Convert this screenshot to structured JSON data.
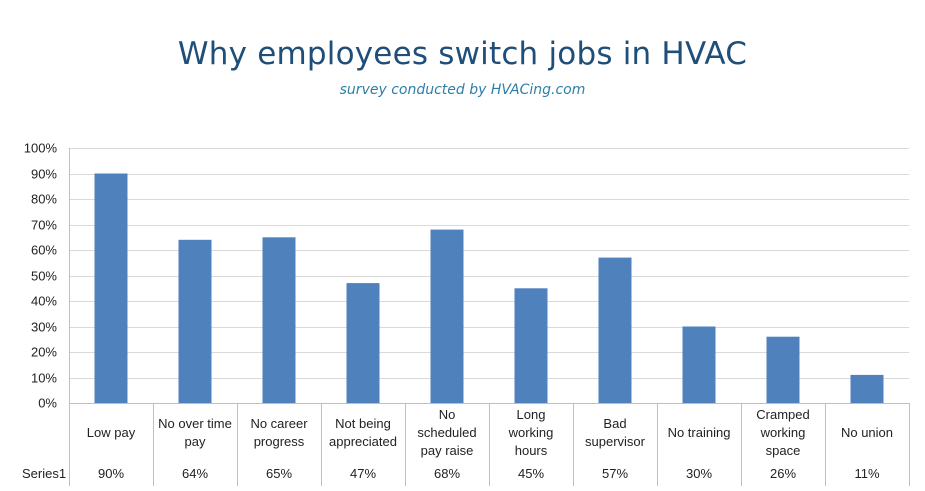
{
  "chart_data": {
    "type": "bar",
    "title": "Why employees switch jobs in HVAC",
    "subtitle": "survey conducted by HVACing.com",
    "xlabel": "",
    "ylabel": "",
    "ylim": [
      0,
      100
    ],
    "ytick_step": 10,
    "ytick_suffix": "%",
    "grid": true,
    "data_table": true,
    "categories": [
      [
        "Low pay"
      ],
      [
        "No over time",
        "pay"
      ],
      [
        "No career",
        "progress"
      ],
      [
        "Not being",
        "appreciated"
      ],
      [
        "No",
        "scheduled",
        "pay raise"
      ],
      [
        "Long",
        "working",
        "hours"
      ],
      [
        "Bad",
        "supervisor"
      ],
      [
        "No training"
      ],
      [
        "Cramped",
        "working",
        "space"
      ],
      [
        "No union"
      ]
    ],
    "series": [
      {
        "name": "Series1",
        "color": "#4f81bd",
        "values": [
          90,
          64,
          65,
          47,
          68,
          45,
          57,
          30,
          26,
          11
        ],
        "labels": [
          "90%",
          "64%",
          "65%",
          "47%",
          "68%",
          "45%",
          "57%",
          "30%",
          "26%",
          "11%"
        ]
      }
    ]
  }
}
